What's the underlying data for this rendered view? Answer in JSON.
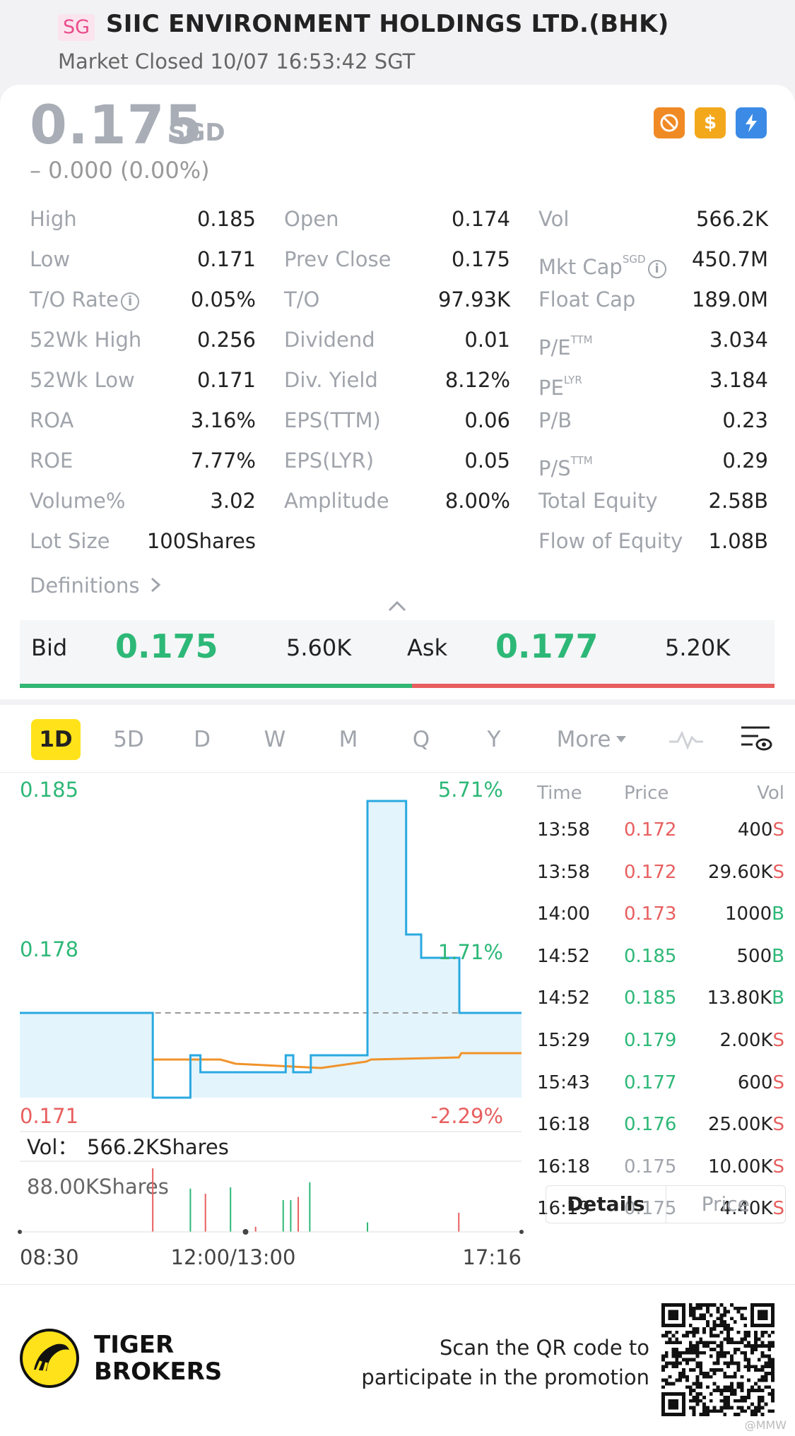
{
  "header": {
    "market_badge": "SG",
    "stock_name": "SIIC ENVIRONMENT HOLDINGS LTD.(BHK)",
    "market_status": "Market Closed 10/07 16:53:42 SGT"
  },
  "quote": {
    "price": "0.175",
    "currency": "SGD",
    "change": "– 0.000 (0.00%)",
    "status_icons": [
      "no-short-sell-icon",
      "dividend-icon",
      "flash-icon"
    ]
  },
  "stats": {
    "rows": [
      [
        {
          "label": "High",
          "value": "0.185"
        },
        {
          "label": "Open",
          "value": "0.174"
        },
        {
          "label": "Vol",
          "value": "566.2K"
        }
      ],
      [
        {
          "label": "Low",
          "value": "0.171"
        },
        {
          "label": "Prev Close",
          "value": "0.175"
        },
        {
          "label": "Mkt Cap",
          "value": "450.7M"
        }
      ],
      [
        {
          "label": "T/O Rate",
          "value": "0.05%"
        },
        {
          "label": "T/O",
          "value": "97.93K"
        },
        {
          "label": "Float Cap",
          "value": "189.0M"
        }
      ],
      [
        {
          "label": "52Wk High",
          "value": "0.256"
        },
        {
          "label": "Dividend",
          "value": "0.01"
        },
        {
          "label": "P/E",
          "value": "3.034"
        }
      ],
      [
        {
          "label": "52Wk Low",
          "value": "0.171"
        },
        {
          "label": "Div. Yield",
          "value": "8.12%"
        },
        {
          "label": "PE",
          "value": "3.184"
        }
      ],
      [
        {
          "label": "ROA",
          "value": "3.16%"
        },
        {
          "label": "EPS(TTM)",
          "value": "0.06"
        },
        {
          "label": "P/B",
          "value": "0.23"
        }
      ],
      [
        {
          "label": "ROE",
          "value": "7.77%"
        },
        {
          "label": "EPS(LYR)",
          "value": "0.05"
        },
        {
          "label": "P/S",
          "value": "0.29"
        }
      ],
      [
        {
          "label": "Volume%",
          "value": "3.02"
        },
        {
          "label": "Amplitude",
          "value": "8.00%"
        },
        {
          "label": "Total Equity",
          "value": "2.58B"
        }
      ],
      [
        {
          "label": "Lot Size",
          "value": "100Shares"
        },
        null,
        {
          "label": "Flow of Equity",
          "value": "1.08B"
        }
      ]
    ],
    "superscripts": {
      "mkt_cap": "SGD",
      "pe_ttm": "TTM",
      "pe_lyr": "LYR",
      "ps_ttm": "TTM"
    },
    "info_glyph": "i"
  },
  "definitions_label": "Definitions",
  "bid_ask": {
    "bid_label": "Bid",
    "bid_price": "0.175",
    "bid_size": "5.60K",
    "ask_label": "Ask",
    "ask_price": "0.177",
    "ask_size": "5.20K"
  },
  "tabs": [
    "1D",
    "5D",
    "D",
    "W",
    "M",
    "Q",
    "Y",
    "More"
  ],
  "active_tab": "1D",
  "chart_data": {
    "type": "line",
    "y_high_label": "0.185",
    "y_mid_label": "0.178",
    "y_low_label": "0.171",
    "pct_high_label": "5.71%",
    "pct_mid_label": "1.71%",
    "pct_low_label": "-2.29%",
    "ylim": [
      0.171,
      0.185
    ],
    "prev_close": 0.175,
    "x_labels": [
      "08:30",
      "12:00/13:00",
      "17:16"
    ],
    "series": [
      {
        "points": [
          [
            0,
            0.175
          ],
          [
            0.265,
            0.175
          ],
          [
            0.265,
            0.171
          ],
          [
            0.34,
            0.171
          ],
          [
            0.34,
            0.173
          ],
          [
            0.36,
            0.173
          ],
          [
            0.36,
            0.1722
          ],
          [
            0.53,
            0.1722
          ],
          [
            0.53,
            0.173
          ],
          [
            0.545,
            0.173
          ],
          [
            0.545,
            0.1722
          ],
          [
            0.58,
            0.1722
          ],
          [
            0.58,
            0.173
          ],
          [
            0.693,
            0.173
          ],
          [
            0.693,
            0.185
          ],
          [
            0.77,
            0.185
          ],
          [
            0.77,
            0.1787
          ],
          [
            0.8,
            0.1787
          ],
          [
            0.8,
            0.1776
          ],
          [
            0.876,
            0.1776
          ],
          [
            0.876,
            0.175
          ],
          [
            1,
            0.175
          ]
        ]
      },
      {
        "points": [
          [
            0.265,
            0.1728
          ],
          [
            0.4,
            0.1728
          ],
          [
            0.43,
            0.1726
          ],
          [
            0.6,
            0.1724
          ],
          [
            0.69,
            0.1727
          ],
          [
            0.7,
            0.1728
          ],
          [
            0.875,
            0.1729
          ],
          [
            0.88,
            0.1731
          ],
          [
            1,
            0.1731
          ]
        ]
      }
    ],
    "volume_label": "Vol：",
    "volume_value": "566.2KShares",
    "volume_scale_label": "88.00KShares",
    "volume_bars": [
      {
        "x": 0.265,
        "v": 1.0,
        "side": "sell"
      },
      {
        "x": 0.34,
        "v": 0.68,
        "side": "buy"
      },
      {
        "x": 0.37,
        "v": 0.6,
        "side": "sell"
      },
      {
        "x": 0.42,
        "v": 0.7,
        "side": "buy"
      },
      {
        "x": 0.47,
        "v": 0.08,
        "side": "sell"
      },
      {
        "x": 0.525,
        "v": 0.5,
        "side": "buy"
      },
      {
        "x": 0.54,
        "v": 0.5,
        "side": "buy"
      },
      {
        "x": 0.555,
        "v": 0.55,
        "side": "sell"
      },
      {
        "x": 0.578,
        "v": 0.78,
        "side": "buy"
      },
      {
        "x": 0.693,
        "v": 0.15,
        "side": "buy"
      },
      {
        "x": 0.875,
        "v": 0.3,
        "side": "sell"
      }
    ]
  },
  "trade_list": {
    "headers": {
      "time": "Time",
      "price": "Price",
      "vol": "Vol"
    },
    "rows": [
      {
        "time": "13:58",
        "price": "0.172",
        "vol": "400",
        "side": "S",
        "price_color": "#e85f5f"
      },
      {
        "time": "13:58",
        "price": "0.172",
        "vol": "29.60K",
        "side": "S",
        "price_color": "#e85f5f"
      },
      {
        "time": "14:00",
        "price": "0.173",
        "vol": "1000",
        "side": "B",
        "price_color": "#e85f5f"
      },
      {
        "time": "14:52",
        "price": "0.185",
        "vol": "500",
        "side": "B",
        "price_color": "#2db877"
      },
      {
        "time": "14:52",
        "price": "0.185",
        "vol": "13.80K",
        "side": "B",
        "price_color": "#2db877"
      },
      {
        "time": "15:29",
        "price": "0.179",
        "vol": "2.00K",
        "side": "S",
        "price_color": "#2db877"
      },
      {
        "time": "15:43",
        "price": "0.177",
        "vol": "600",
        "side": "S",
        "price_color": "#2db877"
      },
      {
        "time": "16:18",
        "price": "0.176",
        "vol": "25.00K",
        "side": "S",
        "price_color": "#2db877"
      },
      {
        "time": "16:18",
        "price": "0.175",
        "vol": "10.00K",
        "side": "S",
        "price_color": "#a0a4ab"
      },
      {
        "time": "16:19",
        "price": "0.175",
        "vol": "4.40K",
        "side": "S",
        "price_color": "#a0a4ab"
      }
    ],
    "detail_tabs": [
      "Details",
      "Price"
    ]
  },
  "footer": {
    "brand_line1": "TIGER",
    "brand_line2": "BROKERS",
    "promo_line1": "Scan the QR code to",
    "promo_line2": "participate in the promotion",
    "watermark": "@MMW"
  },
  "colors": {
    "up": "#2db877",
    "down": "#e85f5f",
    "accent": "#ffe21a",
    "line": "#2aa9e0",
    "avg": "#f0932a"
  }
}
